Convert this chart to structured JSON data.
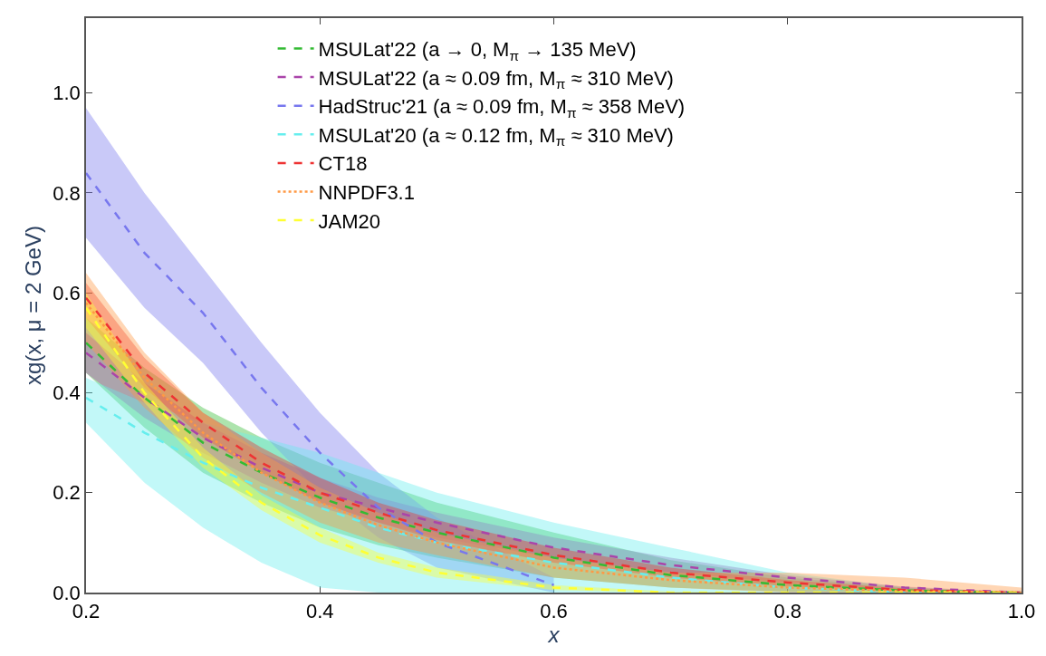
{
  "chart_data": {
    "type": "line",
    "xlabel": "x",
    "ylabel": "xg(x, μ = 2 GeV)",
    "x": [
      0.2,
      0.25,
      0.3,
      0.35,
      0.4,
      0.45,
      0.5,
      0.6,
      0.7,
      0.8,
      0.9,
      1.0
    ],
    "xlim": [
      0.2,
      1.0
    ],
    "xticks": [
      0.2,
      0.4,
      0.6,
      0.8,
      {
        "value": 1,
        "label": "1.0"
      }
    ],
    "ylim": [
      0,
      1.15
    ],
    "yticks": [
      {
        "value": 0,
        "label": "0.0"
      },
      0.2,
      0.4,
      0.6,
      0.8,
      {
        "value": 1,
        "label": "1.0"
      }
    ],
    "legend": "top",
    "marker": "none",
    "series": [
      {
        "name": "MSULat'22 (a → 0, M$_{π}$ → 135 MeV)",
        "color": "#33bb33",
        "line_style": "dashed",
        "values": [
          0.5,
          0.39,
          0.3,
          0.24,
          0.19,
          0.15,
          0.12,
          0.07,
          0.035,
          0.015,
          0.004,
          0
        ],
        "lower": [
          0.44,
          0.33,
          0.24,
          0.18,
          0.13,
          0.095,
          0.07,
          0.03,
          0.01,
          0.002,
          0,
          0
        ],
        "upper": [
          0.55,
          0.45,
          0.37,
          0.31,
          0.26,
          0.22,
          0.18,
          0.12,
          0.065,
          0.03,
          0.01,
          0
        ]
      },
      {
        "name": "MSULat'22 (a ≈ 0.09 fm, M$_{π}$ ≈ 310 MeV)",
        "color": "#aa44aa",
        "line_style": "dashed",
        "values": [
          0.48,
          0.39,
          0.31,
          0.25,
          0.2,
          0.17,
          0.14,
          0.09,
          0.055,
          0.03,
          0.01,
          0
        ],
        "lower": [
          0.44,
          0.35,
          0.28,
          0.22,
          0.17,
          0.14,
          0.11,
          0.07,
          0.04,
          0.02,
          0.005,
          0
        ],
        "upper": [
          0.52,
          0.42,
          0.34,
          0.28,
          0.23,
          0.19,
          0.16,
          0.11,
          0.07,
          0.035,
          0.012,
          0
        ]
      },
      {
        "name": "HadStruc'21 (a ≈ 0.09 fm, M$_{π}$ ≈ 358 MeV)",
        "color": "#7777ee",
        "line_style": "dashed",
        "values": [
          0.84,
          0.68,
          0.56,
          0.41,
          0.28,
          0.17,
          0.1,
          0.015,
          null,
          null,
          null,
          null
        ],
        "lower": [
          0.71,
          0.57,
          0.46,
          0.32,
          0.2,
          0.11,
          0.05,
          0,
          null,
          null,
          null,
          null
        ],
        "upper": [
          0.97,
          0.8,
          0.65,
          0.5,
          0.36,
          0.24,
          0.15,
          0.03,
          null,
          null,
          null,
          null
        ]
      },
      {
        "name": "MSULat'20 (a ≈ 0.12 fm, M$_{π}$ ≈ 310 MeV)",
        "color": "#66eeee",
        "line_style": "dashed",
        "values": [
          0.39,
          0.32,
          0.26,
          0.21,
          0.17,
          0.13,
          0.1,
          0.06,
          0.03,
          0.01,
          0,
          0
        ],
        "lower": [
          0.34,
          0.22,
          0.13,
          0.06,
          0.01,
          0,
          0,
          0,
          0,
          0,
          0,
          0
        ],
        "upper": [
          0.43,
          0.38,
          0.34,
          0.31,
          0.28,
          0.24,
          0.2,
          0.14,
          0.09,
          0.04,
          0.01,
          0
        ]
      },
      {
        "name": "CT18",
        "color": "#ee3333",
        "line_style": "dashed",
        "values": [
          0.59,
          0.44,
          0.34,
          0.26,
          0.2,
          0.16,
          0.125,
          0.075,
          0.04,
          0.02,
          0.005,
          0
        ],
        "lower": [
          0.55,
          0.41,
          0.31,
          0.24,
          0.18,
          0.14,
          0.105,
          0.06,
          0.03,
          0.012,
          0.003,
          0
        ],
        "upper": [
          0.62,
          0.47,
          0.36,
          0.29,
          0.23,
          0.18,
          0.145,
          0.09,
          0.05,
          0.025,
          0.008,
          0
        ]
      },
      {
        "name": "NNPDF3.1",
        "color": "#ff9944",
        "line_style": "dotted",
        "values": [
          0.58,
          0.43,
          0.32,
          0.24,
          0.18,
          0.135,
          0.1,
          0.05,
          0.025,
          0.01,
          0.003,
          0
        ],
        "lower": [
          0.5,
          0.37,
          0.27,
          0.2,
          0.14,
          0.1,
          0.075,
          0.03,
          0.01,
          0,
          0,
          0
        ],
        "upper": [
          0.64,
          0.48,
          0.36,
          0.28,
          0.21,
          0.16,
          0.12,
          0.07,
          0.04,
          0.04,
          0.03,
          0.01
        ]
      },
      {
        "name": "JAM20",
        "color": "#ffff33",
        "line_style": "dashed",
        "values": [
          0.57,
          0.4,
          0.27,
          0.18,
          0.115,
          0.07,
          0.04,
          0.01,
          0,
          0,
          0,
          0
        ],
        "lower": [
          0.53,
          0.38,
          0.25,
          0.165,
          0.1,
          0.06,
          0.03,
          0.005,
          0,
          0,
          0,
          0
        ],
        "upper": [
          0.6,
          0.42,
          0.29,
          0.195,
          0.13,
          0.08,
          0.05,
          0.015,
          0.002,
          0,
          0,
          0
        ]
      }
    ]
  }
}
